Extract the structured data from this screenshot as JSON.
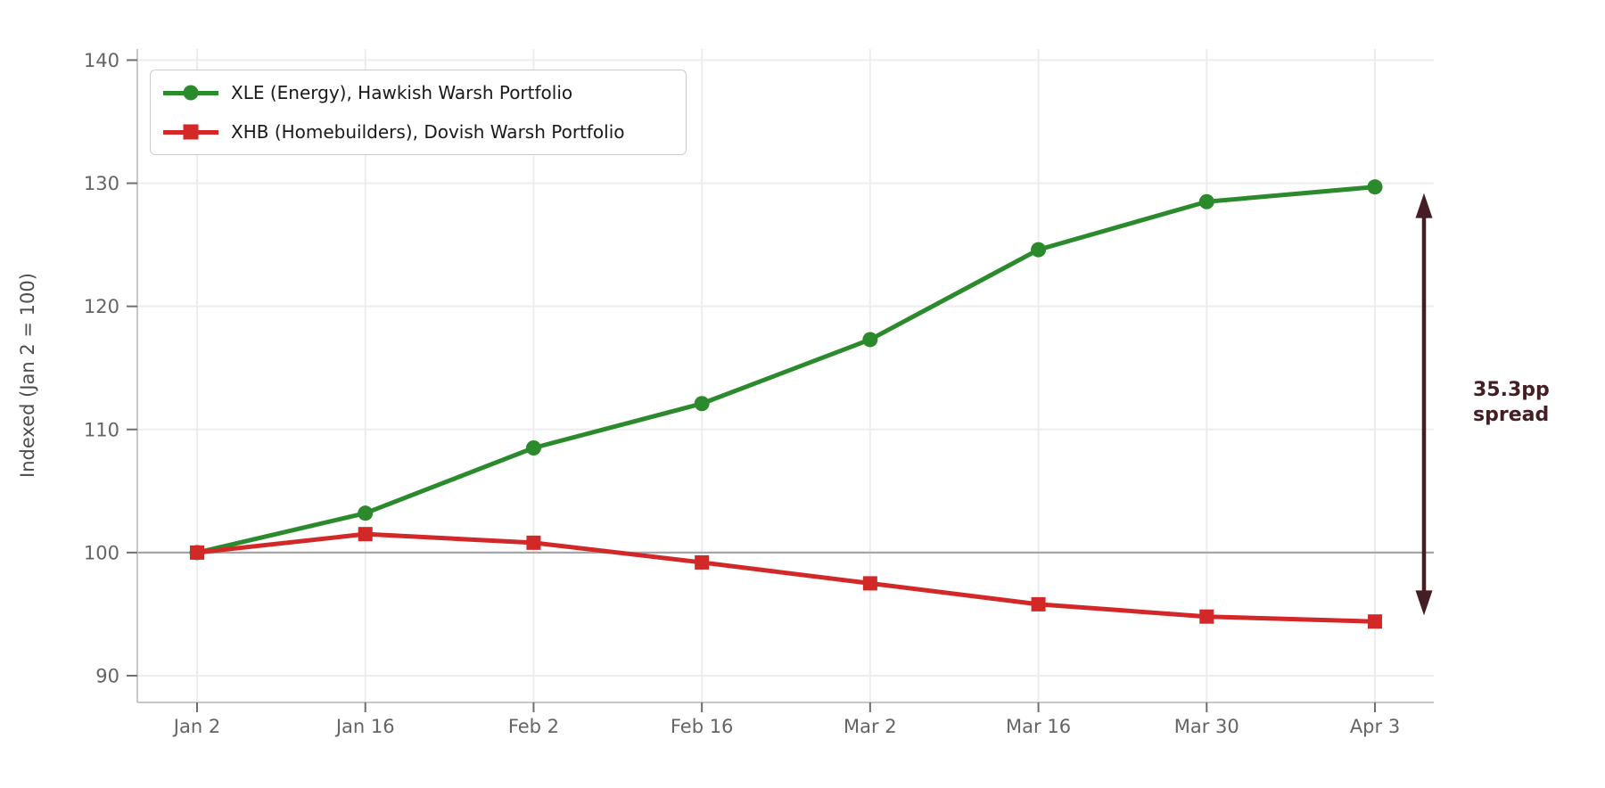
{
  "chart_data": {
    "type": "line",
    "title": "",
    "xlabel": "",
    "ylabel": "Indexed (Jan 2 = 100)",
    "x_tick_labels": [
      "Jan 2",
      "Jan 16",
      "Feb 2",
      "Feb 16",
      "Mar 2",
      "Mar 16",
      "Mar 30",
      "Apr 3"
    ],
    "y_ticks": [
      90,
      100,
      110,
      120,
      130,
      140
    ],
    "ylim": [
      87.9,
      140.9
    ],
    "grid": true,
    "legend_position": "upper-left",
    "colors": {
      "grid": "#ededed",
      "spine": "#c8c8c8",
      "tick_mark": "#6e6e6e",
      "tick_label": "#646464",
      "axis_label": "#4d4d4d",
      "reference_line": "#a6a6a6",
      "background": "#ffffff",
      "legend_border": "#cccccc",
      "legend_text": "#1a1a1a"
    },
    "reference_line": {
      "y": 100
    },
    "series": [
      {
        "name": "XLE (Energy), Hawkish Warsh Portfolio",
        "ticker": "XLE",
        "color": "#2b8a2b",
        "marker": "circle",
        "values": [
          100.0,
          103.2,
          108.5,
          112.1,
          117.3,
          124.6,
          128.5,
          129.7
        ]
      },
      {
        "name": "XHB (Homebuilders), Dovish Warsh Portfolio",
        "ticker": "XHB",
        "color": "#d22828",
        "marker": "square",
        "values": [
          100.0,
          101.5,
          100.8,
          99.2,
          97.5,
          95.8,
          94.8,
          94.4
        ]
      }
    ],
    "annotation": {
      "line1": "35.3pp",
      "line2": "spread",
      "color": "#451d24",
      "arrow_top_value": 129.2,
      "arrow_bottom_value": 94.9
    }
  }
}
